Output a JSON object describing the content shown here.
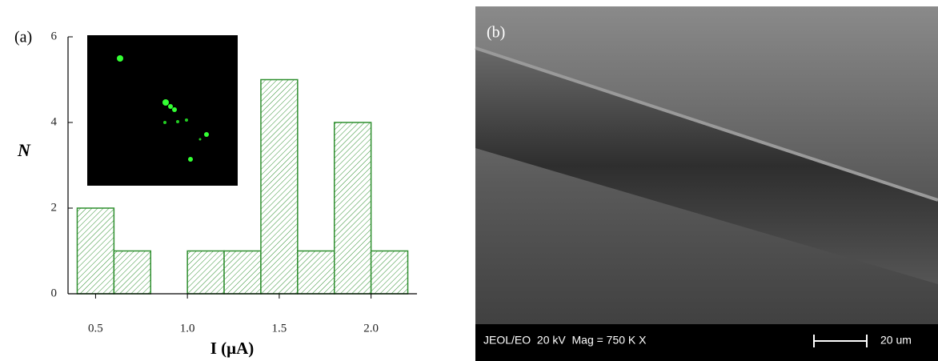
{
  "chart_data": {
    "type": "histogram",
    "panel_label": "(a)",
    "xlabel": "I (μA)",
    "ylabel": "N",
    "bins": [
      0.4,
      0.6,
      0.8,
      1.0,
      1.2,
      1.4,
      1.6,
      1.8,
      2.0,
      2.2
    ],
    "values": [
      2,
      1,
      0,
      1,
      1,
      5,
      1,
      4,
      1
    ],
    "color": "#2f8f2f",
    "xlim": [
      0.35,
      2.25
    ],
    "ylim": [
      0,
      6
    ],
    "xticks": [
      0.5,
      {
        "value": 1.0,
        "label": "1.0"
      },
      1.5,
      {
        "value": 2.0,
        "label": "2.0"
      }
    ],
    "yticks": [
      0,
      2,
      4,
      6
    ]
  },
  "panel_b": {
    "label": "(b)",
    "info": "JEOL/EO  20 kV  Mag = 750 K X",
    "scale_bar": "20 um"
  }
}
